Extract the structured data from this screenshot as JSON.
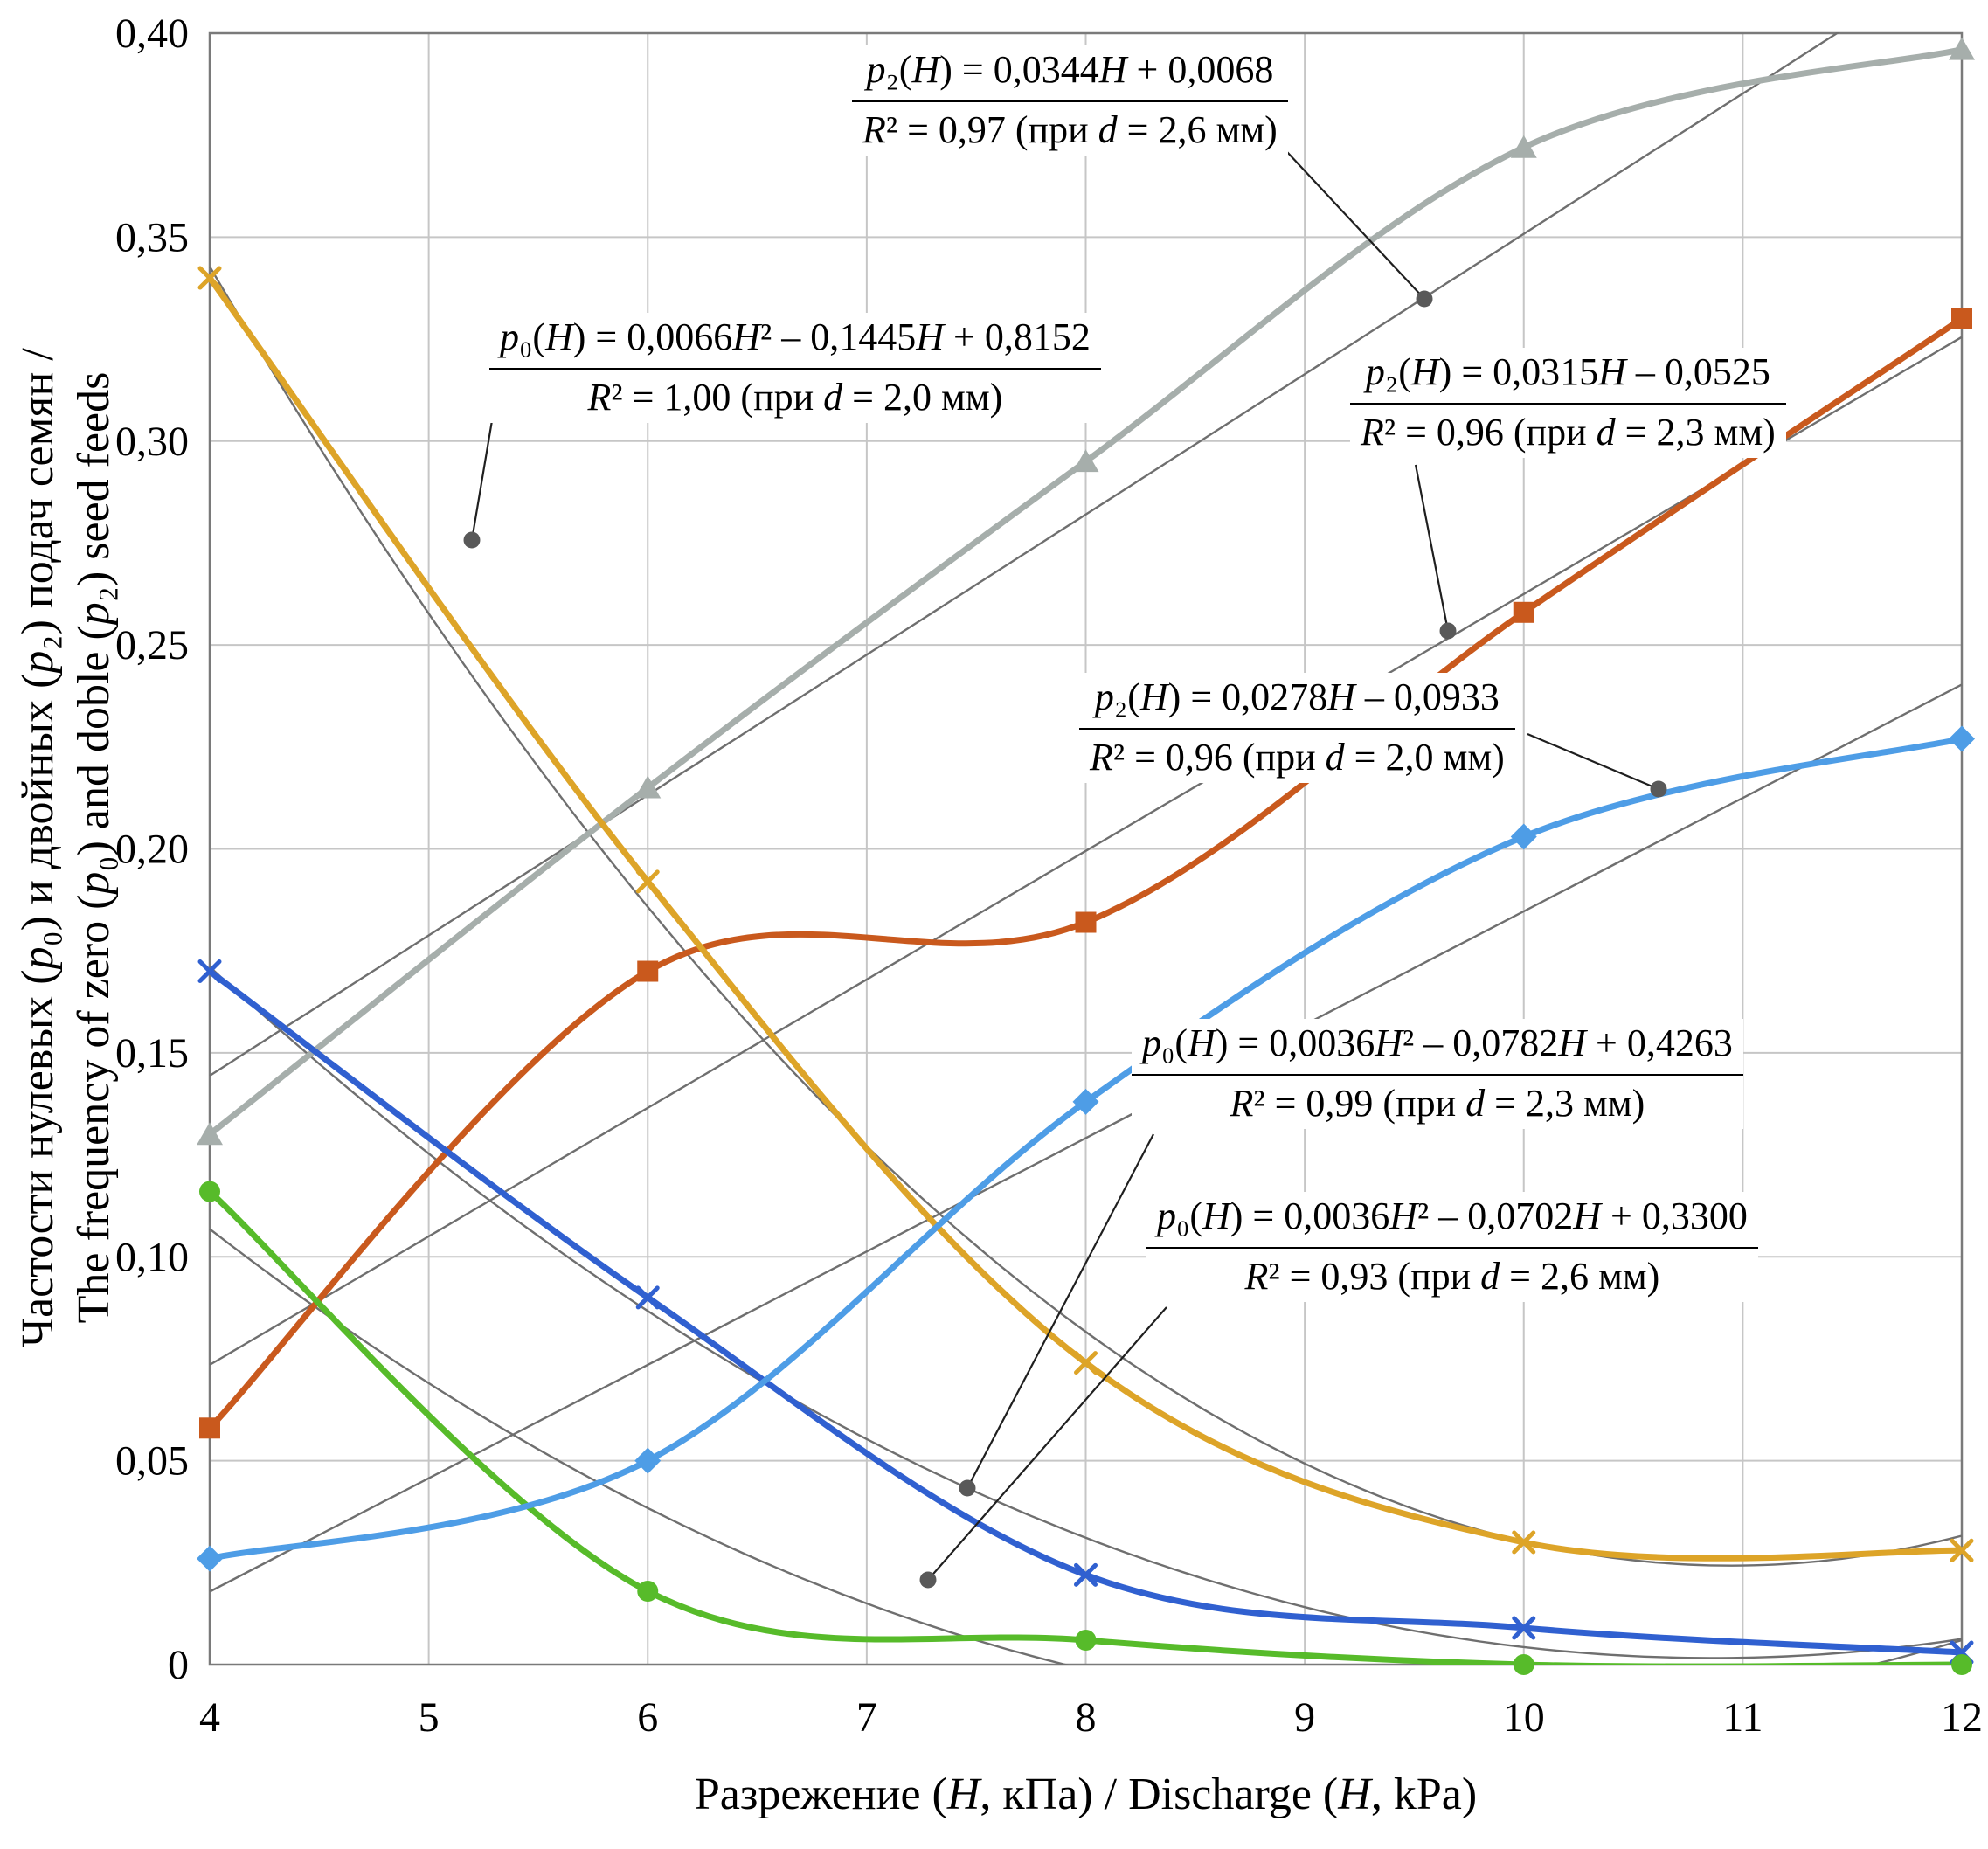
{
  "chart_data": {
    "type": "line",
    "title": "",
    "xlabel": "Разрежение (H, кПа) / Discharge (H, kPa)",
    "ylabel_line1": "Частости нулевых (p₀) и двойных (p₂) подач семян /",
    "ylabel_line2": "The frequency of zero (p₀) and doble (p₂) seed feeds",
    "xlim": [
      4,
      12
    ],
    "ylim": [
      0,
      0.4
    ],
    "grid": true,
    "legend": "none",
    "x_ticks": [
      {
        "v": 4,
        "label": "4"
      },
      {
        "v": 5,
        "label": "5"
      },
      {
        "v": 6,
        "label": "6"
      },
      {
        "v": 7,
        "label": "7"
      },
      {
        "v": 8,
        "label": "8"
      },
      {
        "v": 9,
        "label": "9"
      },
      {
        "v": 10,
        "label": "10"
      },
      {
        "v": 11,
        "label": "11"
      },
      {
        "v": 12,
        "label": "12"
      }
    ],
    "y_ticks": [
      {
        "v": 0,
        "label": "0"
      },
      {
        "v": 0.05,
        "label": "0,05"
      },
      {
        "v": 0.1,
        "label": "0,10"
      },
      {
        "v": 0.15,
        "label": "0,15"
      },
      {
        "v": 0.2,
        "label": "0,20"
      },
      {
        "v": 0.25,
        "label": "0,25"
      },
      {
        "v": 0.3,
        "label": "0,30"
      },
      {
        "v": 0.35,
        "label": "0,35"
      },
      {
        "v": 0.4,
        "label": "0,40"
      }
    ],
    "x": [
      4,
      6,
      8,
      10,
      12
    ],
    "series": [
      {
        "id": "p2-d26",
        "name": "p₂ (при d = 2,6 мм)",
        "marker": "triangle",
        "color": "#a6aeab",
        "values": [
          0.13,
          0.215,
          0.295,
          0.372,
          0.396
        ],
        "trend": {
          "type": "linear",
          "coef": [
            0.0344,
            0.0068
          ],
          "r2": 0.97
        }
      },
      {
        "id": "p2-d23",
        "name": "p₂ (при d = 2,3 мм)",
        "marker": "square",
        "color": "#c9591d",
        "values": [
          0.058,
          0.17,
          0.182,
          0.258,
          0.33
        ],
        "trend": {
          "type": "linear",
          "coef": [
            0.0315,
            -0.0525
          ],
          "r2": 0.96
        }
      },
      {
        "id": "p0-d20",
        "name": "p₀ (при d = 2,0 мм)",
        "marker": "x",
        "color": "#dda428",
        "values": [
          0.34,
          0.192,
          0.074,
          0.03,
          0.028
        ],
        "trend": {
          "type": "quadratic",
          "coef": [
            0.0066,
            -0.1445,
            0.8152
          ],
          "r2": 1.0
        }
      },
      {
        "id": "p0-d23",
        "name": "p₀ (при d = 2,3 мм)",
        "marker": "x",
        "color": "#3060d0",
        "values": [
          0.17,
          0.09,
          0.022,
          0.009,
          0.003
        ],
        "trend": {
          "type": "quadratic",
          "coef": [
            0.0036,
            -0.0782,
            0.4263
          ],
          "r2": 0.99
        }
      },
      {
        "id": "p0-d26",
        "name": "p₀ (при d = 2,6 мм)",
        "marker": "circle",
        "color": "#57bb2a",
        "values": [
          0.116,
          0.018,
          0.006,
          0.0,
          0.0
        ],
        "trend": {
          "type": "quadratic",
          "coef": [
            0.0036,
            -0.0702,
            0.33
          ],
          "r2": 0.93
        }
      },
      {
        "id": "p2-d20",
        "name": "p₂ (при d = 2,0 мм)",
        "marker": "diamond",
        "color": "#4e9de6",
        "values": [
          0.026,
          0.05,
          0.138,
          0.203,
          0.227
        ],
        "trend": {
          "type": "linear",
          "coef": [
            0.0278,
            -0.0933
          ],
          "r2": 0.96
        }
      }
    ],
    "annotations": [
      {
        "id": "p2-d26",
        "eq": "p₂(H) = 0,0344H + 0,0068",
        "r2": "R² = 0,97 (при d = 2,6 мм)",
        "left": 975,
        "top": 52,
        "leader": [
          1430,
          128,
          1630,
          342
        ]
      },
      {
        "id": "p0-d20",
        "eq": "p₀(H) = 0,0066H² – 0,1445H + 0,8152",
        "r2": "R² = 1,00 (при d = 2,0 мм)",
        "left": 560,
        "top": 358,
        "leader": [
          572,
          428,
          540,
          618
        ]
      },
      {
        "id": "p2-d23",
        "eq": "p₂(H) = 0,0315H – 0,0525",
        "r2": "R² = 0,96 (при d = 2,3 мм)",
        "left": 1545,
        "top": 398,
        "leader": [
          1620,
          532,
          1657,
          722
        ]
      },
      {
        "id": "p2-d20",
        "eq": "p₂(H) = 0,0278H – 0,0933",
        "r2": "R² = 0,96 (при d = 2,0 мм)",
        "left": 1235,
        "top": 770,
        "leader": [
          1748,
          840,
          1898,
          903
        ]
      },
      {
        "id": "p0-d23",
        "eq": "p₀(H) = 0,0036H² – 0,0782H + 0,4263",
        "r2": "R² = 0,99 (при d = 2,3 мм)",
        "left": 1295,
        "top": 1166,
        "leader": [
          1320,
          1298,
          1107,
          1703
        ]
      },
      {
        "id": "p0-d26",
        "eq": "p₀(H) = 0,0036H² – 0,0702H + 0,3300",
        "r2": "R² = 0,93 (при d = 2,6 мм)",
        "left": 1312,
        "top": 1364,
        "leader": [
          1335,
          1496,
          1062,
          1808
        ]
      }
    ],
    "colors": {
      "grid": "#c6c6c6",
      "plot_border": "#7a7a7a",
      "trendline": "#6f6f6f",
      "leader": "#1f1f1f",
      "leader_dot": "#595959"
    }
  }
}
